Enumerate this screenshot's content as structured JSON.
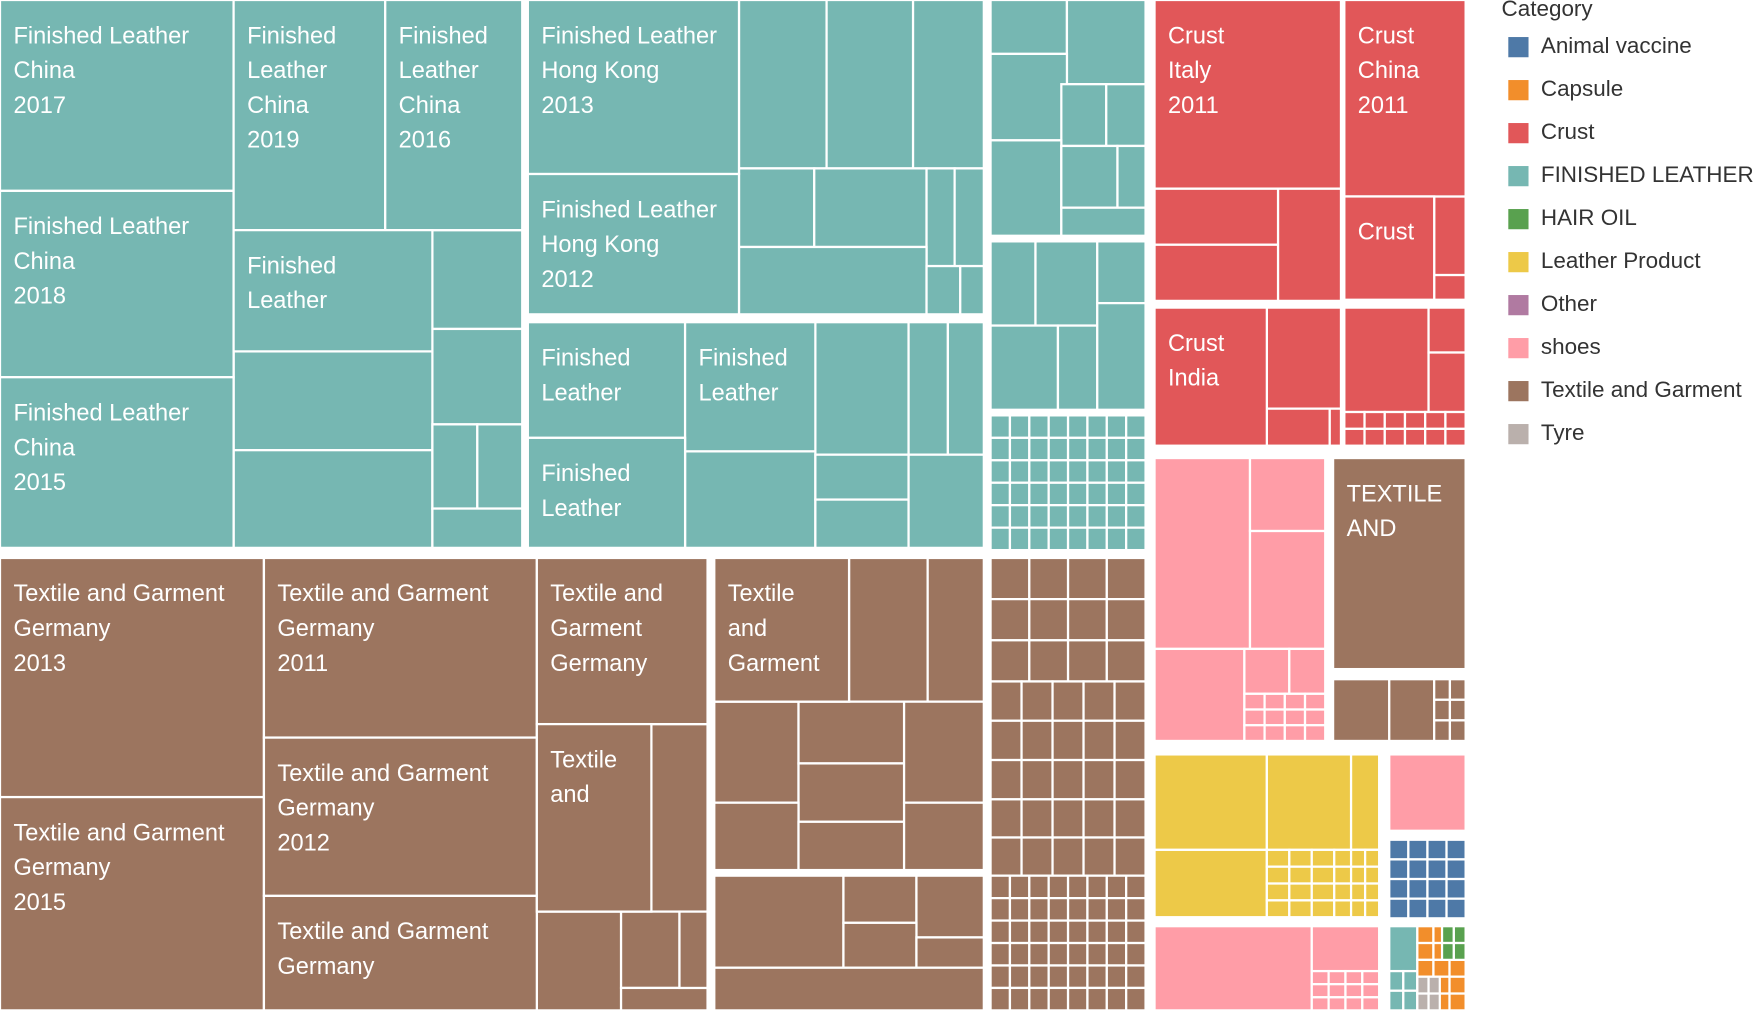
{
  "legend": {
    "title": "Category",
    "items": [
      {
        "name": "Animal vaccine",
        "color": "#4e79a7"
      },
      {
        "name": "Capsule",
        "color": "#f28e2b"
      },
      {
        "name": "Crust",
        "color": "#e15759"
      },
      {
        "name": "FINISHED LEATHER",
        "color": "#76b7b2"
      },
      {
        "name": "HAIR OIL",
        "color": "#59a14f"
      },
      {
        "name": "Leather Product",
        "color": "#edc948"
      },
      {
        "name": "Other",
        "color": "#b07aa1"
      },
      {
        "name": "shoes",
        "color": "#ff9da7"
      },
      {
        "name": "Textile and Garment",
        "color": "#9c755f"
      },
      {
        "name": "Tyre",
        "color": "#bab0ac"
      }
    ]
  },
  "tiles": [
    {
      "lines": [
        "Finished Leather",
        "China",
        "2017"
      ]
    },
    {
      "lines": [
        "Finished Leather",
        "China",
        "2018"
      ]
    },
    {
      "lines": [
        "Finished Leather",
        "China",
        "2015"
      ]
    },
    {
      "lines": [
        "Finished",
        "Leather",
        "China",
        "2019"
      ]
    },
    {
      "lines": [
        "Finished",
        "Leather",
        "China",
        "2016"
      ]
    },
    {
      "lines": [
        "Finished",
        "Leather"
      ]
    },
    {
      "lines": [
        "Finished Leather",
        "Hong Kong",
        "2013"
      ]
    },
    {
      "lines": [
        "Finished Leather",
        "Hong Kong",
        "2012"
      ]
    },
    {
      "lines": [
        "Finished",
        "Leather"
      ]
    },
    {
      "lines": [
        "Finished",
        "Leather"
      ]
    },
    {
      "lines": [
        "Finished",
        "Leather"
      ]
    },
    {
      "lines": [
        "Textile and Garment",
        "Germany",
        "2013"
      ]
    },
    {
      "lines": [
        "Textile and Garment",
        "Germany",
        "2015"
      ]
    },
    {
      "lines": [
        "Textile and Garment",
        "Germany",
        "2011"
      ]
    },
    {
      "lines": [
        "Textile and Garment",
        "Germany",
        "2012"
      ]
    },
    {
      "lines": [
        "Textile and Garment",
        "Germany"
      ]
    },
    {
      "lines": [
        "Textile and",
        "Garment",
        "Germany"
      ]
    },
    {
      "lines": [
        "Textile",
        "and"
      ]
    },
    {
      "lines": [
        "Textile",
        "and",
        "Garment"
      ]
    },
    {
      "lines": [
        "Crust",
        "Italy",
        "2011"
      ]
    },
    {
      "lines": [
        "Crust",
        "China",
        "2011"
      ]
    },
    {
      "lines": [
        "Crust"
      ]
    },
    {
      "lines": [
        "Crust",
        "India"
      ]
    },
    {
      "lines": [
        "TEXTILE",
        "AND"
      ]
    }
  ]
}
